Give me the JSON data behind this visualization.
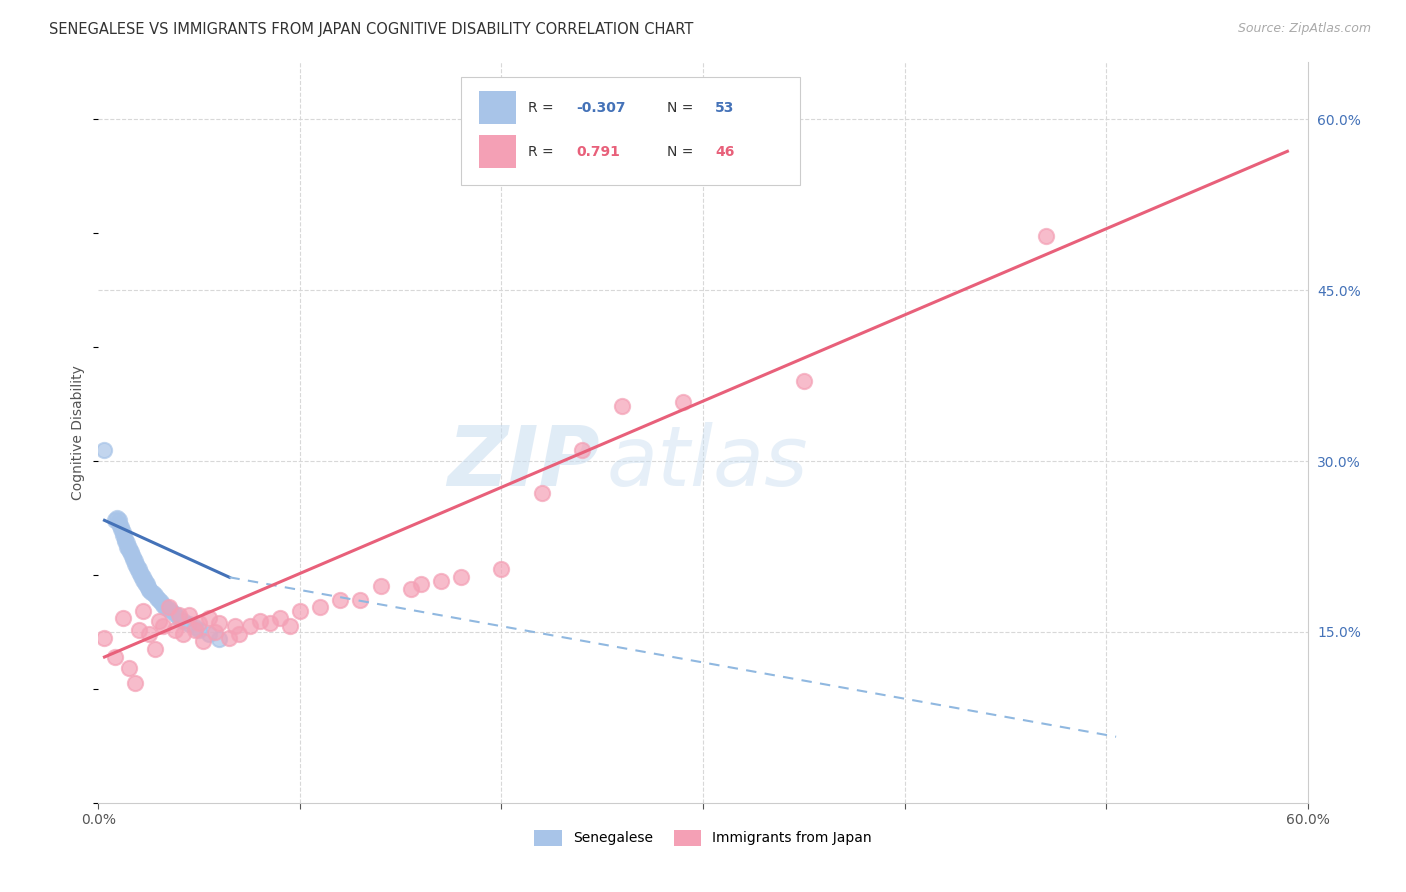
{
  "title": "SENEGALESE VS IMMIGRANTS FROM JAPAN COGNITIVE DISABILITY CORRELATION CHART",
  "source": "Source: ZipAtlas.com",
  "ylabel": "Cognitive Disability",
  "xlim": [
    0.0,
    0.6
  ],
  "ylim": [
    0.0,
    0.65
  ],
  "right_y_ticks": [
    0.15,
    0.3,
    0.45,
    0.6
  ],
  "right_y_tick_labels": [
    "15.0%",
    "30.0%",
    "45.0%",
    "60.0%"
  ],
  "blue_color": "#a8c4e8",
  "pink_color": "#f4a0b5",
  "blue_line_color": "#4472b8",
  "pink_line_color": "#e8607a",
  "dashed_line_color": "#90b8e0",
  "grid_color": "#d8d8d8",
  "watermark_zip": "ZIP",
  "watermark_atlas": "atlas",
  "senegalese_points": [
    [
      0.003,
      0.31
    ],
    [
      0.008,
      0.248
    ],
    [
      0.009,
      0.25
    ],
    [
      0.01,
      0.248
    ],
    [
      0.01,
      0.245
    ],
    [
      0.011,
      0.242
    ],
    [
      0.011,
      0.24
    ],
    [
      0.012,
      0.238
    ],
    [
      0.012,
      0.235
    ],
    [
      0.013,
      0.232
    ],
    [
      0.013,
      0.23
    ],
    [
      0.014,
      0.228
    ],
    [
      0.014,
      0.225
    ],
    [
      0.015,
      0.224
    ],
    [
      0.015,
      0.222
    ],
    [
      0.016,
      0.22
    ],
    [
      0.016,
      0.218
    ],
    [
      0.017,
      0.216
    ],
    [
      0.017,
      0.214
    ],
    [
      0.018,
      0.212
    ],
    [
      0.018,
      0.21
    ],
    [
      0.019,
      0.208
    ],
    [
      0.019,
      0.206
    ],
    [
      0.02,
      0.205
    ],
    [
      0.02,
      0.203
    ],
    [
      0.021,
      0.201
    ],
    [
      0.021,
      0.199
    ],
    [
      0.022,
      0.198
    ],
    [
      0.022,
      0.196
    ],
    [
      0.023,
      0.195
    ],
    [
      0.023,
      0.193
    ],
    [
      0.024,
      0.192
    ],
    [
      0.024,
      0.19
    ],
    [
      0.025,
      0.188
    ],
    [
      0.025,
      0.187
    ],
    [
      0.026,
      0.185
    ],
    [
      0.027,
      0.184
    ],
    [
      0.028,
      0.182
    ],
    [
      0.029,
      0.18
    ],
    [
      0.03,
      0.178
    ],
    [
      0.031,
      0.176
    ],
    [
      0.032,
      0.174
    ],
    [
      0.033,
      0.172
    ],
    [
      0.035,
      0.17
    ],
    [
      0.036,
      0.168
    ],
    [
      0.038,
      0.166
    ],
    [
      0.04,
      0.162
    ],
    [
      0.042,
      0.16
    ],
    [
      0.045,
      0.157
    ],
    [
      0.048,
      0.154
    ],
    [
      0.05,
      0.152
    ],
    [
      0.055,
      0.148
    ],
    [
      0.06,
      0.144
    ]
  ],
  "japan_points": [
    [
      0.003,
      0.145
    ],
    [
      0.008,
      0.128
    ],
    [
      0.012,
      0.162
    ],
    [
      0.015,
      0.118
    ],
    [
      0.018,
      0.105
    ],
    [
      0.02,
      0.152
    ],
    [
      0.022,
      0.168
    ],
    [
      0.025,
      0.148
    ],
    [
      0.028,
      0.135
    ],
    [
      0.03,
      0.16
    ],
    [
      0.032,
      0.155
    ],
    [
      0.035,
      0.172
    ],
    [
      0.038,
      0.152
    ],
    [
      0.04,
      0.165
    ],
    [
      0.042,
      0.148
    ],
    [
      0.045,
      0.165
    ],
    [
      0.048,
      0.152
    ],
    [
      0.05,
      0.158
    ],
    [
      0.052,
      0.142
    ],
    [
      0.055,
      0.162
    ],
    [
      0.058,
      0.15
    ],
    [
      0.06,
      0.158
    ],
    [
      0.065,
      0.145
    ],
    [
      0.068,
      0.155
    ],
    [
      0.07,
      0.148
    ],
    [
      0.075,
      0.155
    ],
    [
      0.08,
      0.16
    ],
    [
      0.085,
      0.158
    ],
    [
      0.09,
      0.162
    ],
    [
      0.095,
      0.155
    ],
    [
      0.1,
      0.168
    ],
    [
      0.11,
      0.172
    ],
    [
      0.12,
      0.178
    ],
    [
      0.13,
      0.178
    ],
    [
      0.14,
      0.19
    ],
    [
      0.155,
      0.188
    ],
    [
      0.16,
      0.192
    ],
    [
      0.17,
      0.195
    ],
    [
      0.18,
      0.198
    ],
    [
      0.2,
      0.205
    ],
    [
      0.22,
      0.272
    ],
    [
      0.24,
      0.31
    ],
    [
      0.26,
      0.348
    ],
    [
      0.29,
      0.352
    ],
    [
      0.35,
      0.37
    ],
    [
      0.47,
      0.498
    ]
  ],
  "blue_trendline_solid": [
    [
      0.003,
      0.248
    ],
    [
      0.065,
      0.198
    ]
  ],
  "blue_trendline_dash": [
    [
      0.065,
      0.198
    ],
    [
      0.505,
      0.058
    ]
  ],
  "pink_trendline": [
    [
      0.003,
      0.128
    ],
    [
      0.59,
      0.572
    ]
  ]
}
